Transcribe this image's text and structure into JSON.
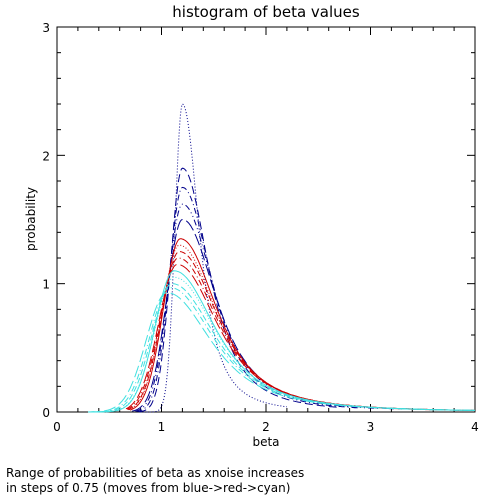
{
  "caption": {
    "line1": "Range of probabilities of beta as xnoise increases",
    "line2": "in steps of 0.75 (moves from blue->red->cyan)"
  },
  "chart_data": {
    "type": "line",
    "title": "histogram of beta values",
    "xlabel": "beta",
    "ylabel": "probability",
    "xlim": [
      0,
      4
    ],
    "ylim": [
      0,
      3
    ],
    "xticks": [
      "0",
      "1",
      "2",
      "3",
      "4"
    ],
    "yticks": [
      "0",
      "1",
      "2",
      "3"
    ],
    "grid": false,
    "legend": "none",
    "curve_shape": {
      "x": [
        0.0,
        0.1,
        0.2,
        0.3,
        0.4,
        0.5,
        0.6,
        0.7,
        0.8,
        0.9,
        1.0,
        1.1,
        1.2,
        1.3,
        1.4,
        1.5,
        1.6,
        1.7,
        1.8,
        1.9,
        2.0,
        2.1,
        2.2,
        2.3,
        2.4,
        2.5
      ]
    },
    "series": [
      {
        "color": "#00008b",
        "dash": "1,2",
        "peak_x": 1.2,
        "peak_y": 2.4,
        "x_start": 0.8,
        "x_end": 2.2
      },
      {
        "color": "#00008b",
        "dash": "8,4",
        "peak_x": 1.2,
        "peak_y": 1.9,
        "x_start": 0.78,
        "x_end": 2.7
      },
      {
        "color": "#00008b",
        "dash": "6,3,1,3",
        "peak_x": 1.2,
        "peak_y": 1.75,
        "x_start": 0.76,
        "x_end": 2.9
      },
      {
        "color": "#00008b",
        "dash": "6,3,1,3,1,3",
        "peak_x": 1.2,
        "peak_y": 1.62,
        "x_start": 0.75,
        "x_end": 3.1
      },
      {
        "color": "#00008b",
        "dash": "12,4",
        "peak_x": 1.2,
        "peak_y": 1.5,
        "x_start": 0.72,
        "x_end": 3.3
      },
      {
        "color": "#cc0000",
        "dash": "",
        "peak_x": 1.18,
        "peak_y": 1.35,
        "x_start": 0.7,
        "x_end": 3.6
      },
      {
        "color": "#cc0000",
        "dash": "1,2",
        "peak_x": 1.17,
        "peak_y": 1.3,
        "x_start": 0.69,
        "x_end": 3.8
      },
      {
        "color": "#cc0000",
        "dash": "6,3",
        "peak_x": 1.17,
        "peak_y": 1.25,
        "x_start": 0.68,
        "x_end": 4.0
      },
      {
        "color": "#cc0000",
        "dash": "6,3,1,3",
        "peak_x": 1.16,
        "peak_y": 1.2,
        "x_start": 0.67,
        "x_end": 4.0
      },
      {
        "color": "#cc0000",
        "dash": "12,4",
        "peak_x": 1.15,
        "peak_y": 1.15,
        "x_start": 0.66,
        "x_end": 4.0
      },
      {
        "color": "#40e0e0",
        "dash": "",
        "peak_x": 1.12,
        "peak_y": 1.1,
        "x_start": 0.3,
        "x_end": 4.0
      },
      {
        "color": "#40e0e0",
        "dash": "1,2",
        "peak_x": 1.12,
        "peak_y": 1.05,
        "x_start": 0.3,
        "x_end": 4.0
      },
      {
        "color": "#40e0e0",
        "dash": "6,3",
        "peak_x": 1.1,
        "peak_y": 1.0,
        "x_start": 0.3,
        "x_end": 4.0
      },
      {
        "color": "#40e0e0",
        "dash": "6,3,1,3",
        "peak_x": 1.08,
        "peak_y": 0.97,
        "x_start": 0.3,
        "x_end": 4.0
      },
      {
        "color": "#40e0e0",
        "dash": "12,4",
        "peak_x": 1.05,
        "peak_y": 0.93,
        "x_start": 0.3,
        "x_end": 4.0
      }
    ]
  }
}
